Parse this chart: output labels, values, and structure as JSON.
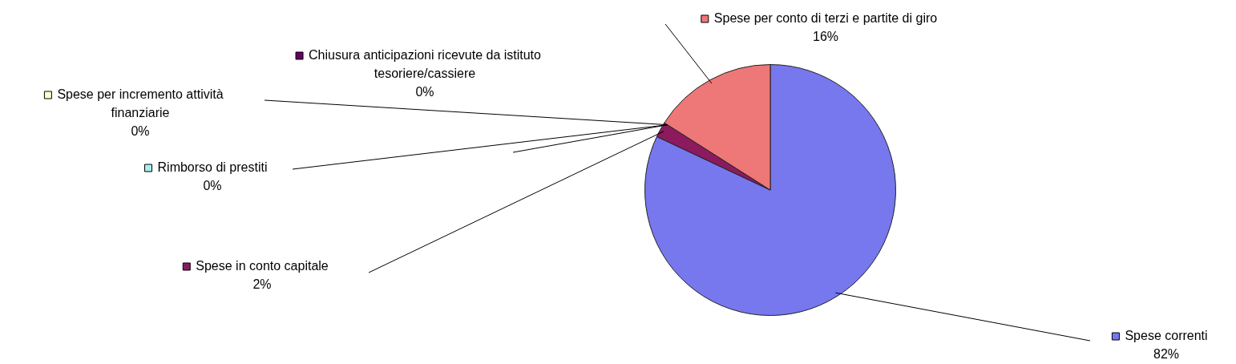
{
  "chart_data": {
    "type": "pie",
    "categories": [
      "Spese correnti",
      "Spese in conto capitale",
      "Rimborso di prestiti",
      "Spese per incremento attività finanziarie",
      "Chiusura anticipazioni ricevute da istituto tesoriere/cassiere",
      "Spese per conto di terzi e partite di giro"
    ],
    "values": [
      82,
      2,
      0,
      0,
      0,
      16
    ],
    "value_labels": [
      "82%",
      "2%",
      "0%",
      "0%",
      "0%",
      "16%"
    ],
    "colors": [
      "#7777ee",
      "#8b1a5e",
      "#aaeeee",
      "#ffffcc",
      "#660066",
      "#ee7777"
    ],
    "legend": "left"
  }
}
